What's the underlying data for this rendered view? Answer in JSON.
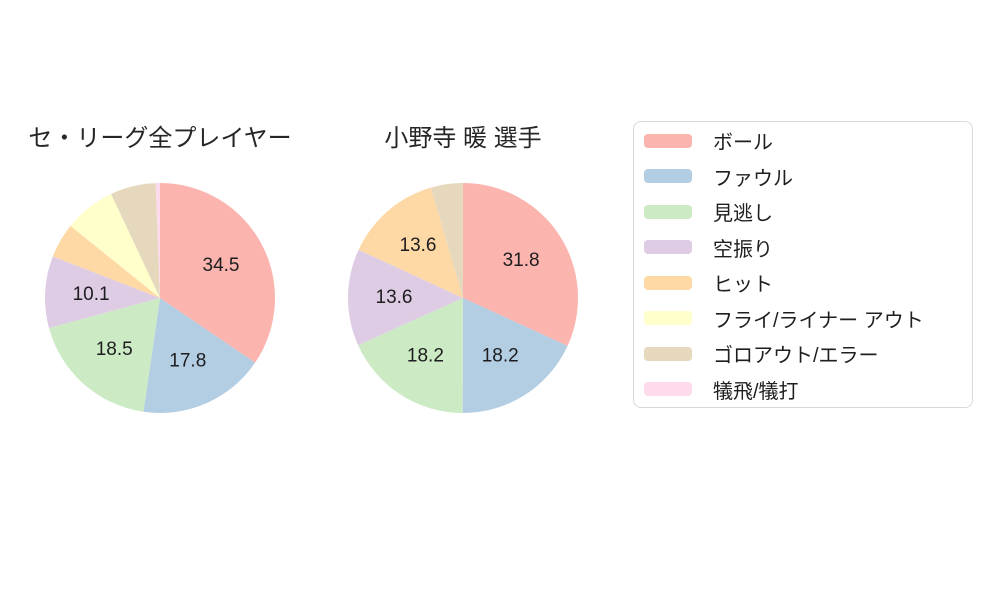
{
  "page": {
    "background_color": "#ffffff"
  },
  "chart_data": [
    {
      "type": "pie",
      "title": "セ・リーグ全プレイヤー",
      "labels": [
        "ボール",
        "ファウル",
        "見逃し",
        "空振り",
        "ヒット",
        "フライ/ライナー アウト",
        "ゴロアウト/エラー",
        "犠飛/犠打"
      ],
      "keys": [
        "ball",
        "foul",
        "called-strike",
        "swinging-strike",
        "hit",
        "fly-liner-out",
        "groundout-error",
        "sacrifice"
      ],
      "values": [
        34.5,
        17.8,
        18.5,
        10.1,
        4.9,
        7.2,
        6.4,
        0.6
      ],
      "value_labels_shown": [
        "34.5",
        "17.8",
        "18.5",
        "10.1",
        "",
        "",
        "",
        ""
      ],
      "colors": [
        "#FBB4AE",
        "#B3CDE3",
        "#CCEBC5",
        "#DECBE4",
        "#FED9A6",
        "#FFFFCC",
        "#E5D8BD",
        "#FDDAEC"
      ],
      "start_angle": "12-oclock",
      "direction": "clockwise",
      "legend_position": "right",
      "grid": false
    },
    {
      "type": "pie",
      "title": "小野寺 暖 選手",
      "labels": [
        "ボール",
        "ファウル",
        "見逃し",
        "空振り",
        "ヒット",
        "ゴロアウト/エラー"
      ],
      "keys": [
        "ball",
        "foul",
        "called-strike",
        "swinging-strike",
        "hit",
        "groundout-error"
      ],
      "values": [
        31.8,
        18.2,
        18.2,
        13.6,
        13.6,
        4.5
      ],
      "value_labels_shown": [
        "31.8",
        "18.2",
        "18.2",
        "13.6",
        "13.6",
        ""
      ],
      "colors": [
        "#FBB4AE",
        "#B3CDE3",
        "#CCEBC5",
        "#DECBE4",
        "#FED9A6",
        "#E5D8BD"
      ],
      "start_angle": "12-oclock",
      "direction": "clockwise",
      "legend_position": "right",
      "grid": false
    }
  ],
  "legend": {
    "position": "right",
    "items": [
      {
        "label": "ボール",
        "key": "ball",
        "color": "#FBB4AE"
      },
      {
        "label": "ファウル",
        "key": "foul",
        "color": "#B3CDE3"
      },
      {
        "label": "見逃し",
        "key": "called-strike",
        "color": "#CCEBC5"
      },
      {
        "label": "空振り",
        "key": "swinging-strike",
        "color": "#DECBE4"
      },
      {
        "label": "ヒット",
        "key": "hit",
        "color": "#FED9A6"
      },
      {
        "label": "フライ/ライナー アウト",
        "key": "fly-liner-out",
        "color": "#FFFFCC"
      },
      {
        "label": "ゴロアウト/エラー",
        "key": "groundout-error",
        "color": "#E5D8BD"
      },
      {
        "label": "犠飛/犠打",
        "key": "sacrifice",
        "color": "#FDDAEC"
      }
    ]
  }
}
